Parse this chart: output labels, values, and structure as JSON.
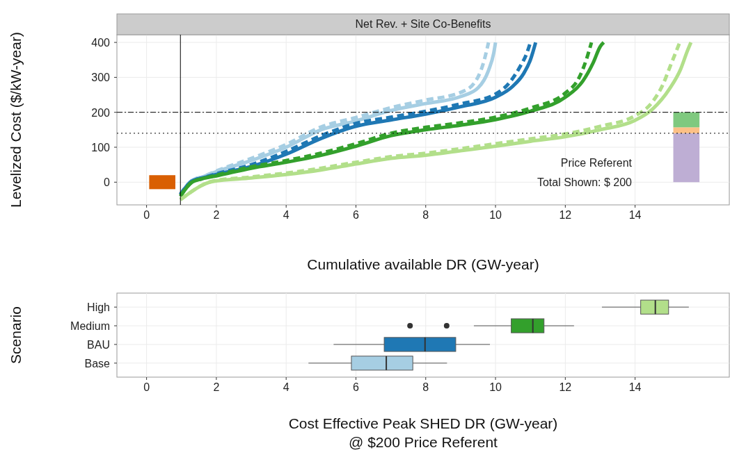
{
  "chart_data": [
    {
      "type": "line",
      "title": "Net Rev. + Site Co-Benefits",
      "xlabel": "Cumulative available DR (GW-year)",
      "ylabel": "Levelized Cost ($/kW-year)",
      "xlim": [
        -0.85,
        16.7
      ],
      "ylim": [
        -65,
        422
      ],
      "xticks": [
        0,
        2,
        4,
        6,
        8,
        10,
        12,
        14
      ],
      "yticks": [
        0,
        100,
        200,
        300,
        400
      ],
      "grid": true,
      "annotations": [
        "Price Referent",
        "Total Shown: $ 200"
      ],
      "ref_lines": [
        {
          "axis": "y",
          "value": 200,
          "line_style": "dashdot",
          "color": "#000000"
        },
        {
          "axis": "y",
          "value": 140,
          "line_style": "dotted",
          "color": "#000000"
        },
        {
          "axis": "x",
          "value": 0.97,
          "line_style": "solid",
          "color": "#000000"
        }
      ],
      "series": [
        {
          "color": "#a6cee3",
          "line_style": "dashed",
          "x": [
            0.97,
            1.3,
            1.6,
            2,
            3,
            4,
            5,
            6,
            7,
            8,
            9,
            9.4,
            9.65,
            9.8
          ],
          "values": [
            -35,
            5,
            15,
            32,
            68,
            108,
            158,
            185,
            213,
            235,
            257,
            285,
            340,
            400
          ]
        },
        {
          "color": "#a6cee3",
          "line_style": "solid",
          "x": [
            0.97,
            1.3,
            1.6,
            2,
            3,
            4,
            5,
            6,
            7,
            8,
            9,
            9.5,
            9.8,
            9.95,
            10
          ],
          "values": [
            -35,
            5,
            15,
            30,
            62,
            100,
            150,
            175,
            205,
            225,
            245,
            270,
            320,
            370,
            400
          ]
        },
        {
          "color": "#1f78b4",
          "line_style": "dashed",
          "x": [
            0.97,
            1.3,
            1.6,
            2,
            3,
            4,
            5,
            6,
            7,
            8,
            9,
            10,
            10.4,
            10.7,
            10.9,
            11
          ],
          "values": [
            -35,
            3,
            12,
            24,
            50,
            88,
            133,
            168,
            186,
            203,
            224,
            252,
            285,
            330,
            370,
            400
          ]
        },
        {
          "color": "#1f78b4",
          "line_style": "solid",
          "x": [
            0.97,
            1.3,
            1.6,
            2,
            3,
            4,
            5,
            6,
            7,
            8,
            9,
            10,
            10.5,
            10.8,
            11,
            11.15
          ],
          "values": [
            -35,
            3,
            12,
            22,
            45,
            80,
            125,
            160,
            178,
            195,
            216,
            243,
            275,
            310,
            350,
            400
          ]
        },
        {
          "color": "#33a02c",
          "line_style": "dashed",
          "x": [
            0.97,
            1.3,
            1.6,
            2,
            3,
            4,
            5,
            6,
            7,
            8,
            9,
            10,
            11,
            12,
            12.4,
            12.6,
            12.75
          ],
          "values": [
            -40,
            0,
            10,
            20,
            44,
            62,
            83,
            110,
            140,
            157,
            170,
            186,
            212,
            255,
            300,
            350,
            400
          ]
        },
        {
          "color": "#33a02c",
          "line_style": "solid",
          "x": [
            0.97,
            1.3,
            1.6,
            2,
            3,
            4,
            5,
            6,
            7,
            8,
            9,
            10,
            11,
            12,
            12.5,
            12.8,
            13,
            13.1
          ],
          "values": [
            -40,
            0,
            10,
            18,
            40,
            57,
            77,
            103,
            133,
            150,
            163,
            179,
            203,
            243,
            289,
            342,
            388,
            400
          ]
        },
        {
          "color": "#b2df8a",
          "line_style": "dashed",
          "x": [
            0.97,
            1.9,
            3,
            4,
            5,
            6,
            7,
            8,
            9,
            10,
            11,
            12,
            13,
            14,
            14.5,
            14.8,
            15,
            15.2,
            15.28
          ],
          "values": [
            -50,
            3,
            15,
            26,
            40,
            57,
            73,
            83,
            96,
            110,
            124,
            138,
            160,
            190,
            230,
            280,
            330,
            380,
            400
          ]
        },
        {
          "color": "#b2df8a",
          "line_style": "solid",
          "x": [
            0.97,
            1.9,
            3,
            4,
            5,
            6,
            7,
            8,
            9,
            10,
            11,
            12,
            13,
            14,
            14.5,
            15,
            15.3,
            15.5,
            15.6
          ],
          "values": [
            -50,
            2,
            12,
            22,
            35,
            52,
            68,
            77,
            90,
            103,
            117,
            130,
            150,
            177,
            209,
            269,
            322,
            376,
            400
          ]
        },
        {
          "type": "bar",
          "color": "#d95f02",
          "x": [
            0.45
          ],
          "base": [
            -20
          ],
          "values": [
            40
          ]
        },
        {
          "type": "bar",
          "color": "#beaed4",
          "x": [
            15.47
          ],
          "base": [
            0
          ],
          "values": [
            140
          ]
        },
        {
          "type": "bar",
          "color": "#fdc086",
          "x": [
            15.47
          ],
          "base": [
            140
          ],
          "values": [
            17
          ]
        },
        {
          "type": "bar",
          "color": "#7fc97f",
          "x": [
            15.47
          ],
          "base": [
            157
          ],
          "values": [
            43
          ]
        }
      ]
    },
    {
      "type": "box",
      "orientation": "horizontal",
      "xlabel": "Cost Effective Peak SHED DR (GW-year)\n@ $200 Price Referent",
      "ylabel": "Scenario",
      "categories": [
        "High",
        "Medium",
        "BAU",
        "Base"
      ],
      "colors": [
        "#b2df8a",
        "#33a02c",
        "#1f78b4",
        "#a6cee3"
      ],
      "xlim": [
        -0.85,
        16.7
      ],
      "xticks": [
        0,
        2,
        4,
        6,
        8,
        10,
        12,
        14
      ],
      "grid": true,
      "boxes": [
        {
          "low": 13.05,
          "q1": 14.16,
          "median": 14.58,
          "q3": 14.96,
          "high": 15.54
        },
        {
          "low": 9.38,
          "q1": 10.45,
          "median": 11.07,
          "q3": 11.39,
          "high": 12.25,
          "outliers": [
            7.55,
            8.6
          ]
        },
        {
          "low": 5.36,
          "q1": 6.81,
          "median": 7.98,
          "q3": 8.86,
          "high": 9.84
        },
        {
          "low": 4.64,
          "q1": 5.87,
          "median": 6.87,
          "q3": 7.63,
          "high": 8.61
        }
      ]
    }
  ]
}
